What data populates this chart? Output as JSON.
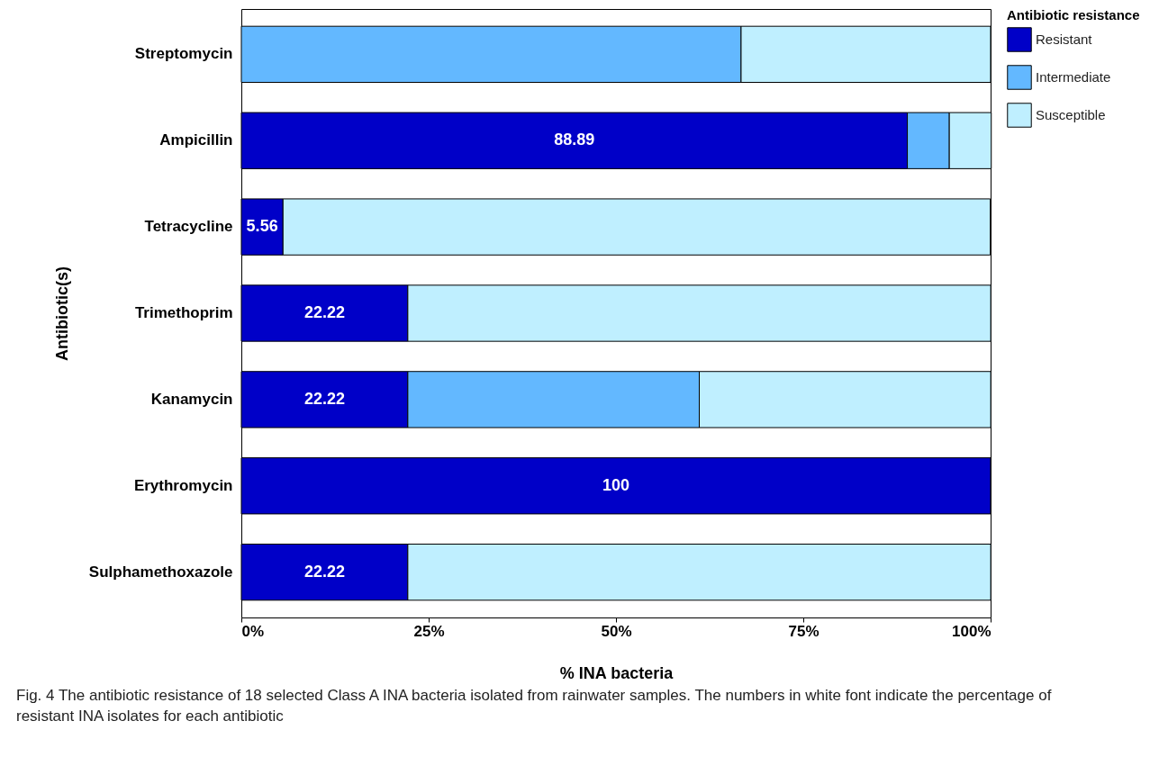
{
  "chart_data": {
    "type": "bar",
    "orientation": "horizontal",
    "stacked": true,
    "categories": [
      "Streptomycin",
      "Ampicillin",
      "Tetracycline",
      "Trimethoprim",
      "Kanamycin",
      "Erythromycin",
      "Sulphamethoxazole"
    ],
    "series": [
      {
        "name": "Resistant",
        "color": "#0000c8",
        "values": [
          0,
          88.89,
          5.56,
          22.22,
          22.22,
          100,
          22.22
        ],
        "value_labels": [
          null,
          "88.89",
          "5.56",
          "22.22",
          "22.22",
          "100",
          "22.22"
        ]
      },
      {
        "name": "Intermediate",
        "color": "#63b8ff",
        "values": [
          66.7,
          5.6,
          0,
          0,
          38.9,
          0,
          0
        ]
      },
      {
        "name": "Susceptible",
        "color": "#bfefff",
        "values": [
          33.3,
          5.6,
          94.4,
          77.8,
          38.9,
          0,
          77.8
        ]
      }
    ],
    "xlim": [
      0,
      100
    ],
    "xticks": [
      {
        "value": 0,
        "label": "0%"
      },
      {
        "value": 25,
        "label": "25%"
      },
      {
        "value": 50,
        "label": "50%"
      },
      {
        "value": 75,
        "label": "75%"
      },
      {
        "value": 100,
        "label": "100%"
      }
    ],
    "xlabel": "% INA bacteria",
    "ylabel": "Antibiotic(s)",
    "legend_title": "Antibiotic resistance",
    "legend": "top right",
    "grid": false,
    "annotations": [
      "Fig. 4 The antibiotic resistance of 18 selected Class A INA bacteria isolated from rainwater samples. The numbers in white font indicate the percentage of resistant INA isolates for each antibiotic"
    ]
  }
}
